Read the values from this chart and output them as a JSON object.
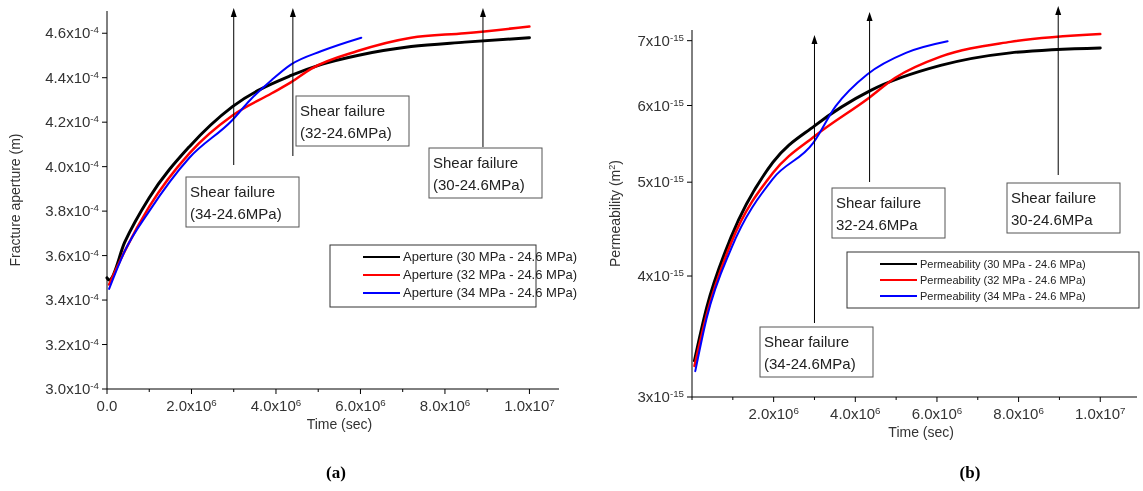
{
  "chart_data": [
    {
      "type": "line",
      "xlabel": "Time (sec)",
      "ylabel": "Fracture aperture (m)",
      "legend": "right",
      "xlim": [
        0,
        10700000
      ],
      "ylim": [
        0.0003,
        0.00047
      ],
      "xticks": [
        {
          "value": 0,
          "label": "0.0"
        },
        {
          "value": 1000000,
          "label": null
        },
        {
          "value": 2000000,
          "label": "2.0x10$^{6}$"
        },
        {
          "value": 3000000,
          "label": null
        },
        {
          "value": 4000000,
          "label": "4.0x10$^{6}$"
        },
        {
          "value": 5000000,
          "label": null
        },
        {
          "value": 6000000,
          "label": "6.0x10$^{6}$"
        },
        {
          "value": 7000000,
          "label": null
        },
        {
          "value": 8000000,
          "label": "8.0x10$^{6}$"
        },
        {
          "value": 9000000,
          "label": null
        },
        {
          "value": 10000000,
          "label": "1.0x10$^{7}$"
        }
      ],
      "yticks": [
        {
          "value": 0.0003,
          "label": "3.0x10$^{-4}$"
        },
        {
          "value": 0.00032,
          "label": "3.2x10$^{-4}$"
        },
        {
          "value": 0.00034,
          "label": "3.4x10$^{-4}$"
        },
        {
          "value": 0.00036,
          "label": "3.6x10$^{-4}$"
        },
        {
          "value": 0.00038,
          "label": "3.8x10$^{-4}$"
        },
        {
          "value": 0.0004,
          "label": "4.0x10$^{-4}$"
        },
        {
          "value": 0.00042,
          "label": "4.2x10$^{-4}$"
        },
        {
          "value": 0.00044,
          "label": "4.4x10$^{-4}$"
        },
        {
          "value": 0.00046,
          "label": "4.6x10$^{-4}$"
        }
      ],
      "series": [
        {
          "name": "Aperture (30 MPa - 24.6 MPa)",
          "color": "#000000",
          "x": [
            0,
            50000,
            420000,
            1000000,
            1950000,
            2970000,
            4360000,
            5080000,
            5930000,
            7200000,
            8470000,
            10000000
          ],
          "values": [
            0.00035,
            0.000349,
            0.000366,
            0.000386,
            0.000409,
            0.000427,
            0.000441,
            0.000446,
            0.00045,
            0.000454,
            0.000456,
            0.000458
          ]
        },
        {
          "name": "Aperture (32 MPa - 24.6 MPa)",
          "color": "#ff0000",
          "x": [
            50000,
            420000,
            1000000,
            1950000,
            2970000,
            3900000,
            4360000,
            4830000,
            5930000,
            7200000,
            8470000,
            10000000
          ],
          "values": [
            0.000347,
            0.000362,
            0.000382,
            0.000406,
            0.000423,
            0.000433,
            0.000438,
            0.000444,
            0.000452,
            0.000458,
            0.00046,
            0.000463
          ]
        },
        {
          "name": "Aperture (34 MPa - 24.6 MPa)",
          "color": "#0000ff",
          "x": [
            50000,
            420000,
            1000000,
            1950000,
            2970000,
            3390000,
            3900000,
            4360000,
            5080000,
            6020000
          ],
          "values": [
            0.000345,
            0.000362,
            0.00038,
            0.000404,
            0.000421,
            0.00043,
            0.000439,
            0.000446,
            0.000452,
            0.000458
          ]
        }
      ],
      "ref_lines": [
        {
          "axis": "x",
          "value": 3000000,
          "label": "Shear failure\n(34-24.6MPa)"
        },
        {
          "axis": "x",
          "value": 4400000,
          "label": "Shear failure\n(32-24.6MPa)"
        },
        {
          "axis": "x",
          "value": 8900000,
          "label": "Shear failure\n(30-24.6MPa)"
        }
      ],
      "annotations": [
        "(a)"
      ]
    },
    {
      "type": "line",
      "xlabel": "Time (sec)",
      "ylabel": "Permeability (m$^{2}$)",
      "legend": "right",
      "log": "y",
      "xlim": [
        0,
        10900000
      ],
      "ylim": [
        3e-15,
        7.18e-15
      ],
      "xticks": [
        {
          "value": 0,
          "label": null
        },
        {
          "value": 1000000,
          "label": null
        },
        {
          "value": 2000000,
          "label": "2.0x10$^{6}$"
        },
        {
          "value": 3000000,
          "label": null
        },
        {
          "value": 4000000,
          "label": "4.0x10$^{6}$"
        },
        {
          "value": 5000000,
          "label": null
        },
        {
          "value": 6000000,
          "label": "6.0x10$^{6}$"
        },
        {
          "value": 7000000,
          "label": null
        },
        {
          "value": 8000000,
          "label": "8.0x10$^{6}$"
        },
        {
          "value": 9000000,
          "label": null
        },
        {
          "value": 10000000,
          "label": "1.0x10$^{7}$"
        }
      ],
      "yticks": [
        {
          "value": 3e-15,
          "label": "3x10$^{-15}$"
        },
        {
          "value": 4e-15,
          "label": "4x10$^{-15}$"
        },
        {
          "value": 5e-15,
          "label": "5x10$^{-15}$"
        },
        {
          "value": 6e-15,
          "label": "6x10$^{-15}$"
        },
        {
          "value": 7e-15,
          "label": "7x10$^{-15}$"
        }
      ],
      "series": [
        {
          "name": "Permeability (30 MPa - 24.6 MPa)",
          "color": "#000000",
          "x": [
            60000,
            360000,
            960000,
            1980000,
            3010000,
            4380000,
            6090000,
            7800000,
            10000000
          ],
          "values": [
            3.27e-15,
            3.71e-15,
            4.39e-15,
            5.24e-15,
            5.72e-15,
            6.22e-15,
            6.6e-15,
            6.8e-15,
            6.88e-15
          ]
        },
        {
          "name": "Permeability (32 MPa - 24.6 MPa)",
          "color": "#ff0000",
          "x": [
            60000,
            360000,
            960000,
            1980000,
            3010000,
            4290000,
            4980000,
            6090000,
            7800000,
            10000000
          ],
          "values": [
            3.23e-15,
            3.65e-15,
            4.33e-15,
            5.11e-15,
            5.58e-15,
            6.09e-15,
            6.41e-15,
            6.74e-15,
            6.98e-15,
            7.11e-15
          ]
        },
        {
          "name": "Permeability (34 MPa - 24.6 MPa)",
          "color": "#0000ff",
          "x": [
            80000,
            360000,
            960000,
            1980000,
            2970000,
            3520000,
            4290000,
            5240000,
            6260000
          ],
          "values": [
            3.19e-15,
            3.62e-15,
            4.27e-15,
            5.04e-15,
            5.49e-15,
            5.99e-15,
            6.46e-15,
            6.8e-15,
            6.99e-15
          ]
        }
      ],
      "ref_lines": [
        {
          "axis": "x",
          "value": 3000000,
          "label": "Shear failure\n(34-24.6MPa)"
        },
        {
          "axis": "x",
          "value": 4350000,
          "label": "Shear failure\n32-24.6MPa"
        },
        {
          "axis": "x",
          "value": 8970000,
          "label": "Shear failure\n30-24.6MPa"
        }
      ],
      "annotations": [
        "(b)"
      ]
    }
  ]
}
